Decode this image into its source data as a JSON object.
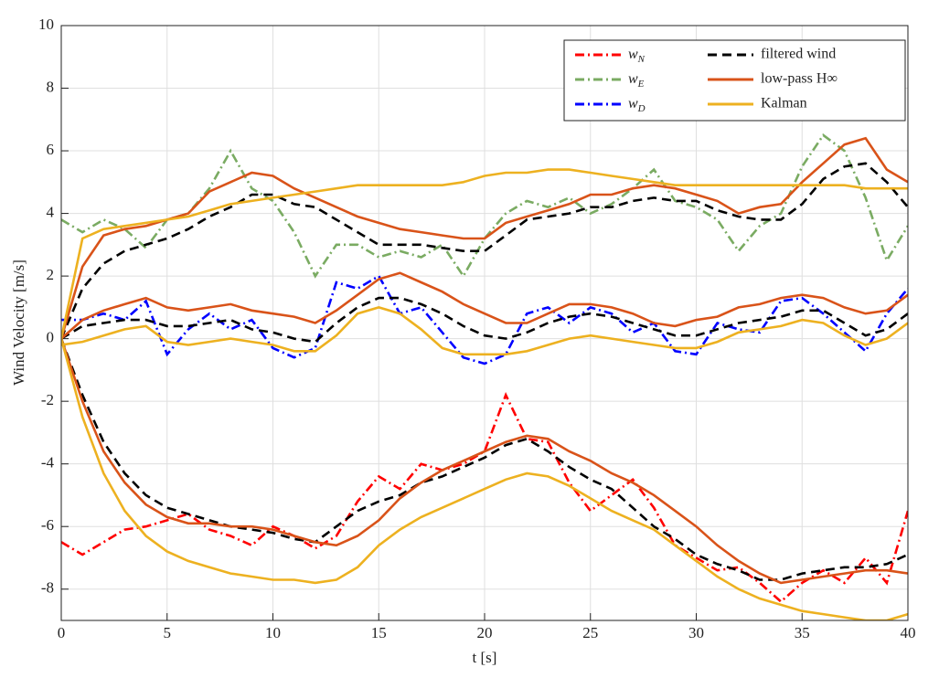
{
  "chart_data": {
    "type": "line",
    "x_label": "t [s]",
    "y_label": "Wind Velocity [m/s]",
    "xlim": [
      0,
      40
    ],
    "ylim": [
      -9,
      10
    ],
    "xticks": [
      0,
      5,
      10,
      15,
      20,
      25,
      30,
      35,
      40
    ],
    "yticks": [
      -8,
      -6,
      -4,
      -2,
      0,
      2,
      4,
      6,
      8,
      10
    ],
    "grid": true,
    "legend": "top-right",
    "x": [
      0,
      1,
      2,
      3,
      4,
      5,
      6,
      7,
      8,
      9,
      10,
      11,
      12,
      13,
      14,
      15,
      16,
      17,
      18,
      19,
      20,
      21,
      22,
      23,
      24,
      25,
      26,
      27,
      28,
      29,
      30,
      31,
      32,
      33,
      34,
      35,
      36,
      37,
      38,
      39,
      40
    ],
    "series": [
      {
        "name": "wN",
        "color": "#ff0000",
        "style": "dashdot",
        "lines": [
          [
            -6.5,
            -6.9,
            -6.5,
            -6.1,
            -6.0,
            -5.8,
            -5.6,
            -6.1,
            -6.3,
            -6.6,
            -6.0,
            -6.3,
            -6.7,
            -6.3,
            -5.2,
            -4.4,
            -4.8,
            -4.0,
            -4.2,
            -4.0,
            -3.6,
            -1.8,
            -3.2,
            -3.3,
            -4.6,
            -5.5,
            -5.0,
            -4.5,
            -5.4,
            -6.6,
            -7.0,
            -7.4,
            -7.3,
            -7.8,
            -8.4,
            -7.8,
            -7.4,
            -7.8,
            -7.0,
            -7.8,
            -5.5
          ]
        ]
      },
      {
        "name": "wE",
        "color": "#7aab62",
        "style": "dashdot",
        "lines": [
          [
            3.8,
            3.4,
            3.8,
            3.5,
            2.9,
            3.8,
            4.0,
            4.8,
            6.0,
            4.8,
            4.4,
            3.4,
            2.0,
            3.0,
            3.0,
            2.6,
            2.8,
            2.6,
            3.0,
            2.0,
            3.2,
            4.0,
            4.4,
            4.2,
            4.5,
            4.0,
            4.3,
            4.8,
            5.4,
            4.4,
            4.2,
            3.8,
            2.8,
            3.6,
            4.0,
            5.5,
            6.5,
            6.0,
            4.5,
            2.5,
            3.6
          ]
        ]
      },
      {
        "name": "wD",
        "color": "#0000ff",
        "style": "dashdot",
        "lines": [
          [
            0.6,
            0.6,
            0.8,
            0.6,
            1.2,
            -0.5,
            0.3,
            0.8,
            0.3,
            0.6,
            -0.3,
            -0.6,
            -0.3,
            1.8,
            1.6,
            2.0,
            0.8,
            1.0,
            0.2,
            -0.6,
            -0.8,
            -0.5,
            0.8,
            1.0,
            0.5,
            1.0,
            0.8,
            0.2,
            0.5,
            -0.4,
            -0.5,
            0.5,
            0.3,
            0.2,
            1.2,
            1.3,
            0.8,
            0.2,
            -0.4,
            0.8,
            1.6
          ]
        ]
      },
      {
        "name": "filtered wind",
        "color": "#000000",
        "style": "dashed",
        "lines": [
          [
            0,
            -1.8,
            -3.3,
            -4.3,
            -5.0,
            -5.4,
            -5.6,
            -5.8,
            -6.0,
            -6.1,
            -6.2,
            -6.4,
            -6.5,
            -6.0,
            -5.5,
            -5.2,
            -5.0,
            -4.6,
            -4.4,
            -4.1,
            -3.8,
            -3.4,
            -3.2,
            -3.6,
            -4.1,
            -4.5,
            -4.8,
            -5.4,
            -6.0,
            -6.4,
            -6.9,
            -7.2,
            -7.4,
            -7.7,
            -7.7,
            -7.5,
            -7.4,
            -7.3,
            -7.3,
            -7.2,
            -6.9
          ],
          [
            0,
            1.6,
            2.4,
            2.8,
            3.0,
            3.2,
            3.5,
            3.9,
            4.2,
            4.6,
            4.6,
            4.3,
            4.2,
            3.8,
            3.4,
            3.0,
            3.0,
            3.0,
            2.9,
            2.8,
            2.8,
            3.3,
            3.8,
            3.9,
            4.0,
            4.2,
            4.2,
            4.4,
            4.5,
            4.4,
            4.4,
            4.1,
            3.9,
            3.8,
            3.8,
            4.3,
            5.1,
            5.5,
            5.6,
            5.0,
            4.2
          ],
          [
            0,
            0.4,
            0.5,
            0.6,
            0.6,
            0.4,
            0.4,
            0.5,
            0.6,
            0.3,
            0.2,
            0.0,
            -0.1,
            0.5,
            1.0,
            1.3,
            1.3,
            1.1,
            0.8,
            0.4,
            0.1,
            0.0,
            0.2,
            0.5,
            0.7,
            0.8,
            0.7,
            0.5,
            0.3,
            0.1,
            0.1,
            0.3,
            0.5,
            0.6,
            0.7,
            0.9,
            0.9,
            0.5,
            0.1,
            0.3,
            0.8
          ]
        ]
      },
      {
        "name": "low-pass H∞",
        "color": "#d95319",
        "style": "solid",
        "lines": [
          [
            0,
            -2.0,
            -3.6,
            -4.6,
            -5.3,
            -5.7,
            -5.9,
            -5.9,
            -6.0,
            -6.0,
            -6.1,
            -6.3,
            -6.5,
            -6.6,
            -6.3,
            -5.8,
            -5.1,
            -4.6,
            -4.2,
            -3.9,
            -3.6,
            -3.3,
            -3.1,
            -3.2,
            -3.6,
            -3.9,
            -4.3,
            -4.6,
            -5.0,
            -5.5,
            -6.0,
            -6.6,
            -7.1,
            -7.5,
            -7.8,
            -7.7,
            -7.6,
            -7.5,
            -7.4,
            -7.4,
            -7.5
          ],
          [
            0,
            2.3,
            3.3,
            3.5,
            3.6,
            3.8,
            4.0,
            4.7,
            5.0,
            5.3,
            5.2,
            4.8,
            4.5,
            4.2,
            3.9,
            3.7,
            3.5,
            3.4,
            3.3,
            3.2,
            3.2,
            3.7,
            3.9,
            4.1,
            4.3,
            4.6,
            4.6,
            4.8,
            4.9,
            4.8,
            4.6,
            4.4,
            4.0,
            4.2,
            4.3,
            5.0,
            5.6,
            6.2,
            6.4,
            5.4,
            5.0
          ],
          [
            0,
            0.6,
            0.9,
            1.1,
            1.3,
            1.0,
            0.9,
            1.0,
            1.1,
            0.9,
            0.8,
            0.7,
            0.5,
            0.9,
            1.4,
            1.9,
            2.1,
            1.8,
            1.5,
            1.1,
            0.8,
            0.5,
            0.5,
            0.8,
            1.1,
            1.1,
            1.0,
            0.8,
            0.5,
            0.4,
            0.6,
            0.7,
            1.0,
            1.1,
            1.3,
            1.4,
            1.3,
            1.0,
            0.8,
            0.9,
            1.4
          ]
        ]
      },
      {
        "name": "Kalman",
        "color": "#edb120",
        "style": "solid",
        "lines": [
          [
            0,
            -2.5,
            -4.3,
            -5.5,
            -6.3,
            -6.8,
            -7.1,
            -7.3,
            -7.5,
            -7.6,
            -7.7,
            -7.7,
            -7.8,
            -7.7,
            -7.3,
            -6.6,
            -6.1,
            -5.7,
            -5.4,
            -5.1,
            -4.8,
            -4.5,
            -4.3,
            -4.4,
            -4.7,
            -5.1,
            -5.5,
            -5.8,
            -6.1,
            -6.6,
            -7.1,
            -7.6,
            -8.0,
            -8.3,
            -8.5,
            -8.7,
            -8.8,
            -8.9,
            -9.0,
            -9.0,
            -8.8
          ],
          [
            0,
            3.2,
            3.5,
            3.6,
            3.7,
            3.8,
            3.9,
            4.1,
            4.3,
            4.4,
            4.5,
            4.6,
            4.7,
            4.8,
            4.9,
            4.9,
            4.9,
            4.9,
            4.9,
            5.0,
            5.2,
            5.3,
            5.3,
            5.4,
            5.4,
            5.3,
            5.2,
            5.1,
            5.0,
            4.9,
            4.9,
            4.9,
            4.9,
            4.9,
            4.9,
            4.9,
            4.9,
            4.9,
            4.8,
            4.8,
            4.8
          ],
          [
            -0.2,
            -0.1,
            0.1,
            0.3,
            0.4,
            -0.1,
            -0.2,
            -0.1,
            0.0,
            -0.1,
            -0.2,
            -0.4,
            -0.4,
            0.1,
            0.8,
            1.0,
            0.8,
            0.3,
            -0.3,
            -0.5,
            -0.5,
            -0.5,
            -0.4,
            -0.2,
            0.0,
            0.1,
            0.0,
            -0.1,
            -0.2,
            -0.3,
            -0.3,
            -0.1,
            0.2,
            0.3,
            0.4,
            0.6,
            0.5,
            0.1,
            -0.2,
            0.0,
            0.5
          ]
        ]
      }
    ]
  }
}
